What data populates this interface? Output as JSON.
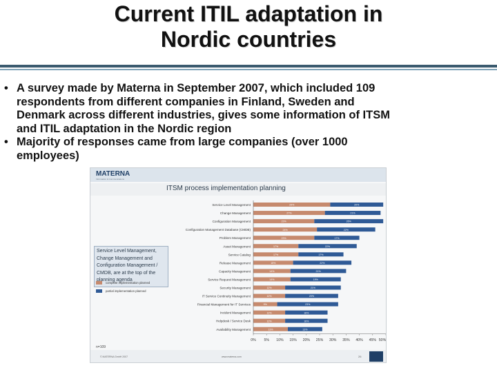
{
  "slide": {
    "title_line1": "Current ITIL adaptation in",
    "title_line2": "Nordic countries",
    "bullets": [
      {
        "marker": "•",
        "lines": [
          "A survey made by Materna in September 2007, which included 109",
          "respondents from different companies in Finland, Sweden and",
          "Denmark across different industries, gives some information of ITSM",
          "and ITIL adaptation in the Nordic region"
        ]
      },
      {
        "marker": "•",
        "lines": [
          "Majority of responses came from large companies (over 1000",
          "employees)"
        ]
      }
    ]
  },
  "figure": {
    "brand": "MATERNA",
    "brand_sub": "Information & Communications",
    "title": "ITSM process implementation planning",
    "callout": "Service Level Management, Change Management and Configuration Management / CMDB, are at the top of the planning agenda",
    "legend": [
      {
        "label": "complete implementation planned",
        "color": "#c68a6e"
      },
      {
        "label": "partial implementation planned",
        "color": "#2f5a96"
      }
    ],
    "footnote": "n=109",
    "footer_left": "© MATERNA GmbH 2007",
    "footer_mid": "www.materna.com",
    "footer_page": "26",
    "footer_logo": "MATERNA"
  },
  "chart_data": {
    "type": "bar",
    "orientation": "horizontal",
    "stacked": true,
    "categories": [
      "Service Level Management",
      "Change Management",
      "Configuration Management",
      "Configuration Management Database (CMDB)",
      "Problem Management",
      "Asset Management",
      "Service Catalog",
      "Release Management",
      "Capacity Management",
      "Service Request Management",
      "Security Management",
      "IT Service Continuity Management",
      "Financial Management for IT Services",
      "Incident Management",
      "Helpdesk / Service Desk",
      "Availability Management"
    ],
    "series": [
      {
        "name": "complete implementation planned",
        "color": "#c68a6e",
        "values": [
          29,
          27,
          23,
          24,
          23,
          17,
          17,
          15,
          14,
          14,
          12,
          12,
          9,
          12,
          12,
          13
        ]
      },
      {
        "name": "partial implementation planned",
        "color": "#2f5a96",
        "values": [
          20,
          21,
          26,
          22,
          17,
          22,
          17,
          22,
          21,
          19,
          21,
          20,
          23,
          16,
          16,
          13
        ]
      }
    ],
    "xlim": [
      0,
      50
    ],
    "xticks": [
      "0%",
      "5%",
      "10%",
      "15%",
      "20%",
      "25%",
      "30%",
      "35%",
      "40%",
      "45%",
      "50%"
    ],
    "grid": false,
    "legend": "left"
  }
}
